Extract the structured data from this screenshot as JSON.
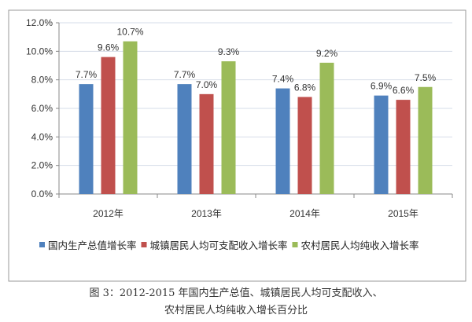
{
  "chart_data": {
    "type": "bar",
    "categories": [
      "2012年",
      "2013年",
      "2014年",
      "2015年"
    ],
    "series": [
      {
        "name": "国内生产总值增长率",
        "values": [
          7.7,
          7.7,
          7.4,
          6.9
        ],
        "color": "#4F81BD"
      },
      {
        "name": "城镇居民人均可支配收入增长率",
        "values": [
          9.6,
          7.0,
          6.8,
          6.6
        ],
        "color": "#C0504D"
      },
      {
        "name": "农村居民人均纯收入增长率",
        "values": [
          10.7,
          9.3,
          9.2,
          7.5
        ],
        "color": "#9BBB59"
      }
    ],
    "data_labels": [
      [
        "7.7%",
        "7.7%",
        "7.4%",
        "6.9%"
      ],
      [
        "9.6%",
        "7.0%",
        "6.8%",
        "6.6%"
      ],
      [
        "10.7%",
        "9.3%",
        "9.2%",
        "7.5%"
      ]
    ],
    "yticks": [
      "0.0%",
      "2.0%",
      "4.0%",
      "6.0%",
      "8.0%",
      "10.0%",
      "12.0%"
    ],
    "ylim": [
      0,
      12
    ],
    "unit": "%",
    "grid": true,
    "legend_position": "bottom",
    "xlabel": "",
    "ylabel": ""
  },
  "caption": {
    "line1": "图 3：2012-2015 年国内生产总值、城镇居民人均可支配收入、",
    "line2": "农村居民人均纯收入增长百分比"
  }
}
